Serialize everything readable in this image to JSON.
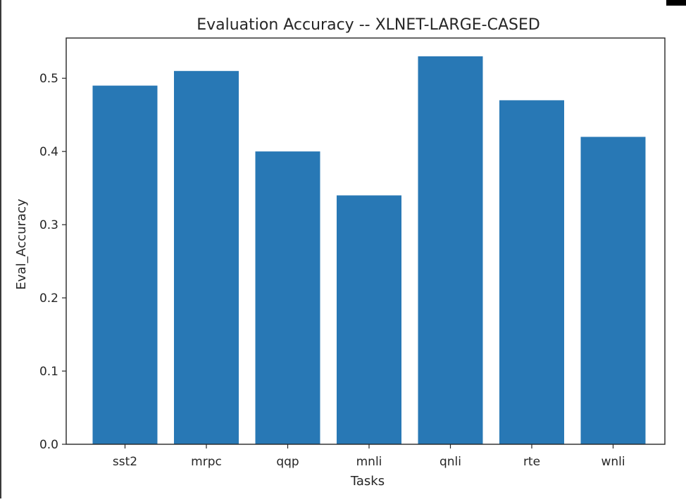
{
  "chart_data": {
    "type": "bar",
    "title": "Evaluation Accuracy -- XLNET-LARGE-CASED",
    "xlabel": "Tasks",
    "ylabel": "Eval_Accuracy",
    "categories": [
      "sst2",
      "mrpc",
      "qqp",
      "mnli",
      "qnli",
      "rte",
      "wnli"
    ],
    "values": [
      0.49,
      0.51,
      0.4,
      0.34,
      0.53,
      0.47,
      0.42
    ],
    "ylim": [
      0,
      0.555
    ],
    "yticks": [
      0.0,
      0.1,
      0.2,
      0.3,
      0.4,
      0.5
    ],
    "ytick_labels": [
      "0.0",
      "0.1",
      "0.2",
      "0.3",
      "0.4",
      "0.5"
    ],
    "bar_color": "#2878b5",
    "grid": false,
    "legend": "none"
  }
}
